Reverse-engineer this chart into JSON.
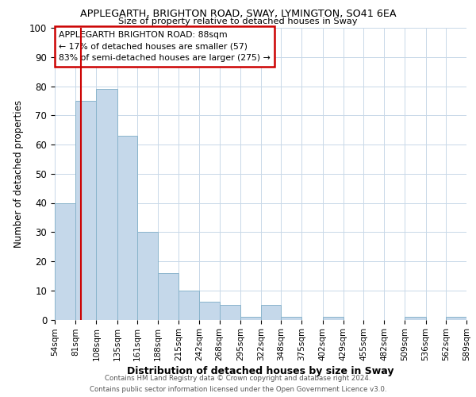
{
  "title": "APPLEGARTH, BRIGHTON ROAD, SWAY, LYMINGTON, SO41 6EA",
  "subtitle": "Size of property relative to detached houses in Sway",
  "xlabel": "Distribution of detached houses by size in Sway",
  "ylabel": "Number of detached properties",
  "bar_color": "#c5d8ea",
  "bar_edge_color": "#8ab4cc",
  "background_color": "#ffffff",
  "grid_color": "#c8d8e8",
  "vline_x": 88,
  "vline_color": "#cc0000",
  "bin_edges": [
    54,
    81,
    108,
    135,
    161,
    188,
    215,
    242,
    268,
    295,
    322,
    348,
    375,
    402,
    429,
    455,
    482,
    509,
    536,
    562,
    589
  ],
  "bin_labels": [
    "54sqm",
    "81sqm",
    "108sqm",
    "135sqm",
    "161sqm",
    "188sqm",
    "215sqm",
    "242sqm",
    "268sqm",
    "295sqm",
    "322sqm",
    "348sqm",
    "375sqm",
    "402sqm",
    "429sqm",
    "455sqm",
    "482sqm",
    "509sqm",
    "536sqm",
    "562sqm",
    "589sqm"
  ],
  "counts": [
    40,
    75,
    79,
    63,
    30,
    16,
    10,
    6,
    5,
    1,
    5,
    1,
    0,
    1,
    0,
    0,
    0,
    1,
    0,
    1
  ],
  "ylim": [
    0,
    100
  ],
  "yticks": [
    0,
    10,
    20,
    30,
    40,
    50,
    60,
    70,
    80,
    90,
    100
  ],
  "annotation_title": "APPLEGARTH BRIGHTON ROAD: 88sqm",
  "annotation_line1": "← 17% of detached houses are smaller (57)",
  "annotation_line2": "83% of semi-detached houses are larger (275) →",
  "annotation_box_color": "#ffffff",
  "annotation_box_edge": "#cc0000",
  "footer_line1": "Contains HM Land Registry data © Crown copyright and database right 2024.",
  "footer_line2": "Contains public sector information licensed under the Open Government Licence v3.0."
}
